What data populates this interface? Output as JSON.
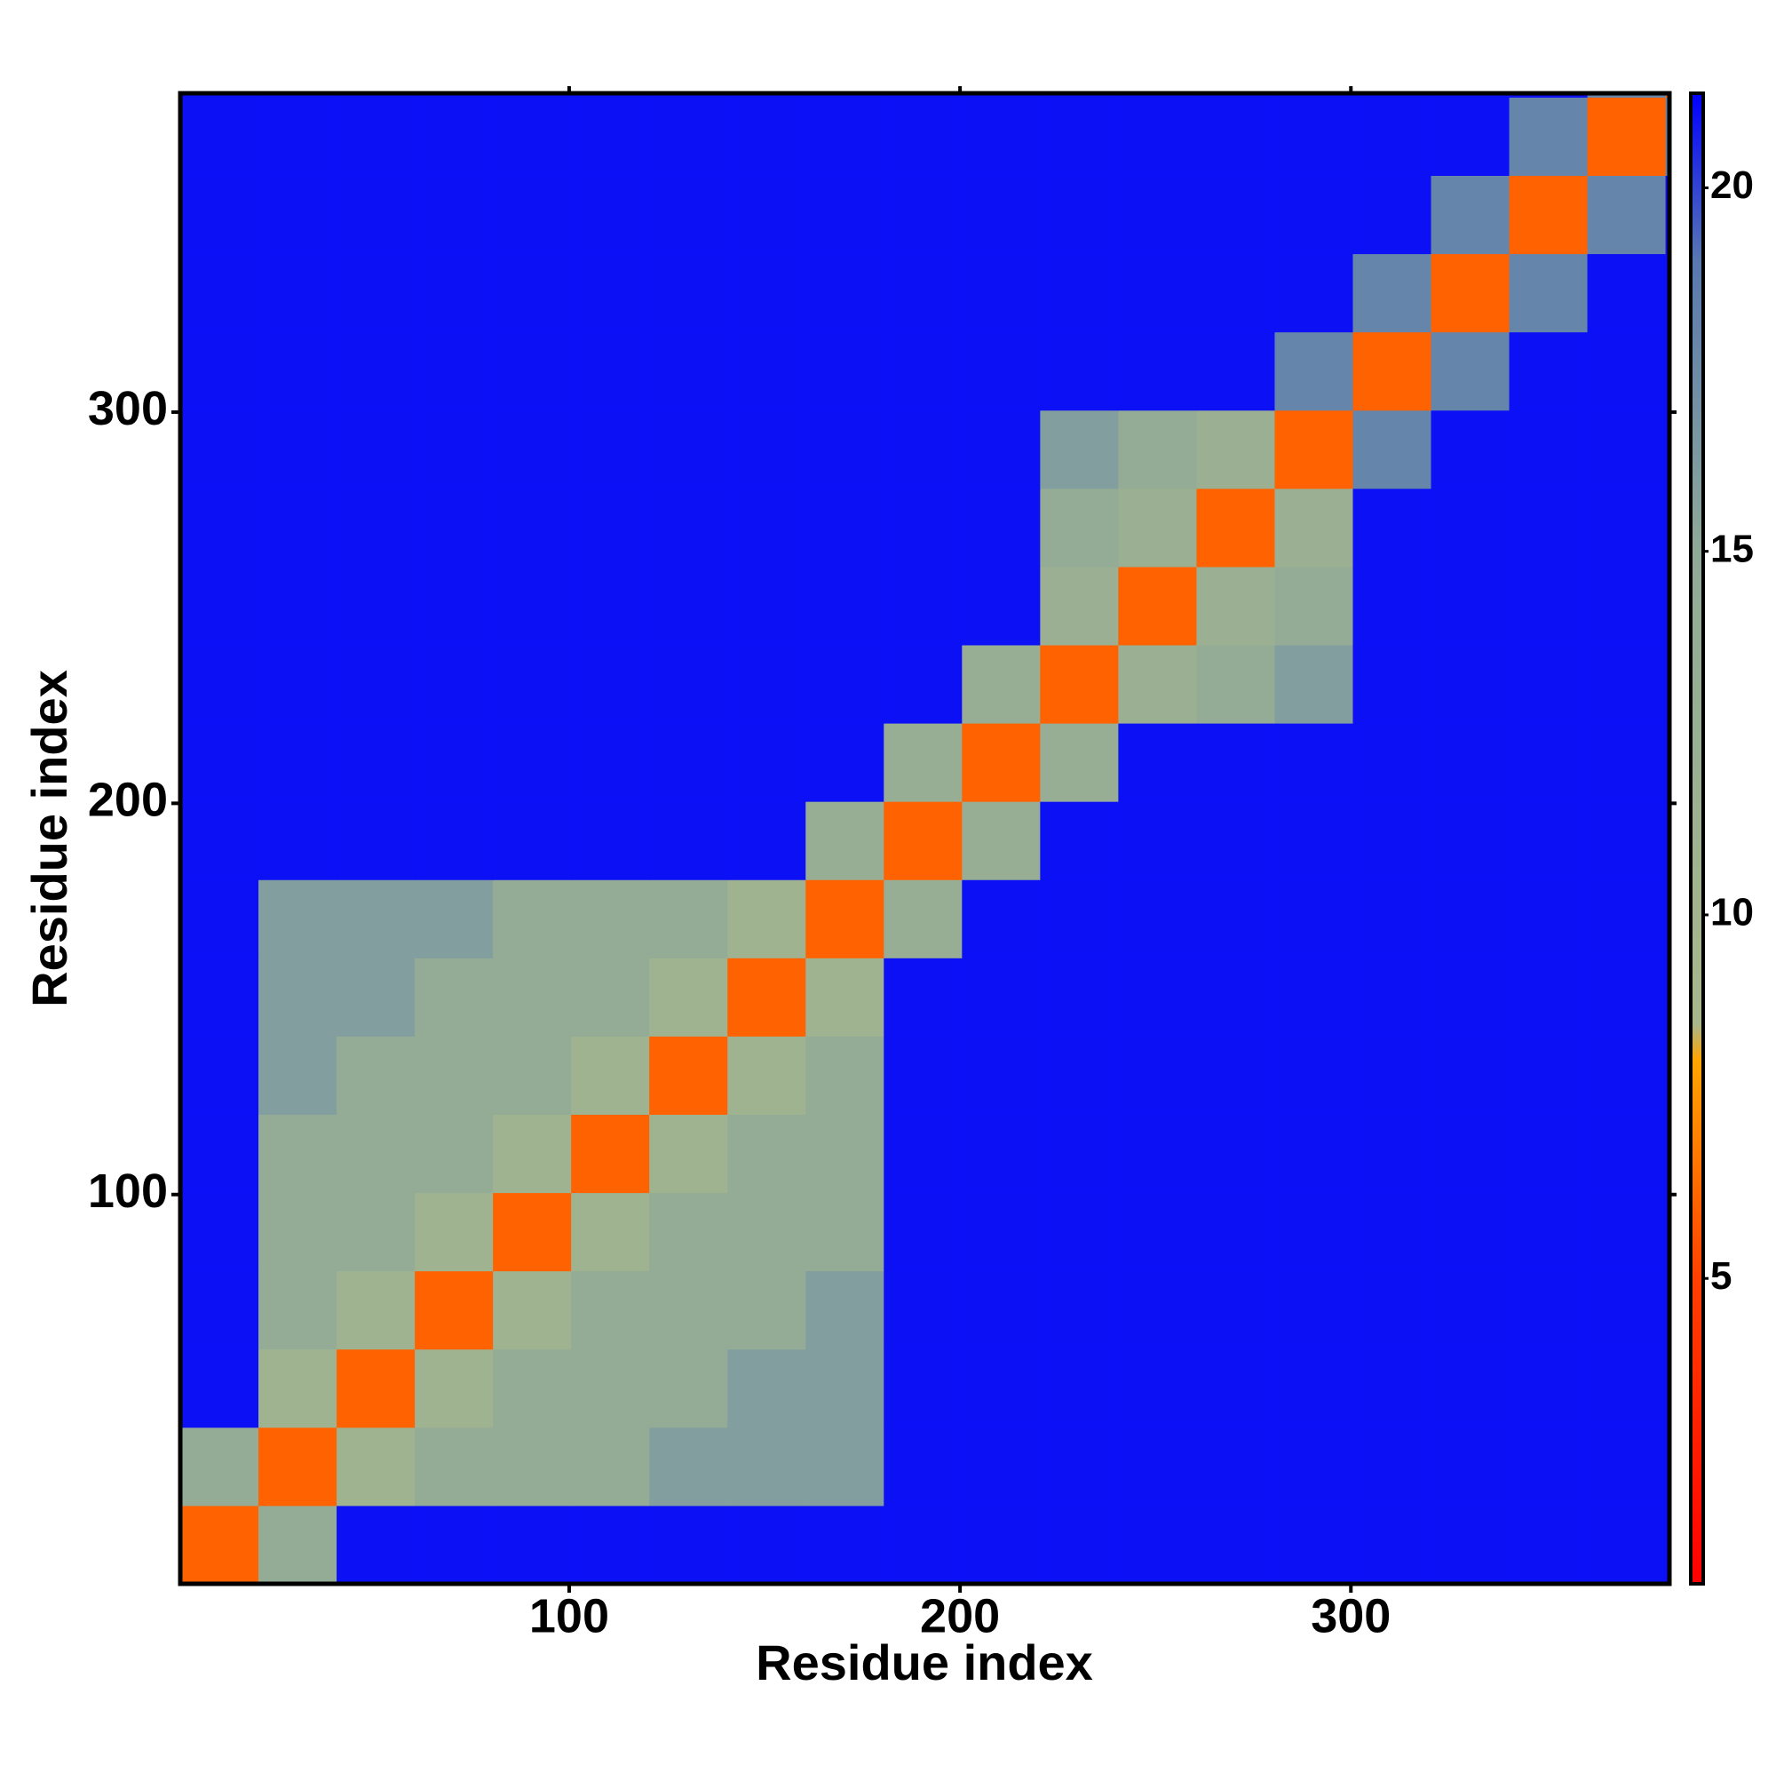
{
  "chart_data": {
    "type": "heatmap",
    "x_label": "Residue index",
    "y_label": "Residue index",
    "xlim": [
      0.5,
      381.5
    ],
    "ylim": [
      0.5,
      381.5
    ],
    "xticks": [
      100,
      200,
      300
    ],
    "yticks": [
      100,
      200,
      300
    ],
    "x_bins": [
      0.5,
      20.5,
      40.5,
      60.5,
      80.5,
      100.5,
      120.5,
      140.5,
      160.5,
      180.5,
      200.5,
      220.5,
      240.5,
      260.5,
      280.5,
      300.5,
      320.5,
      340.5,
      360.5,
      380.5,
      381.5
    ],
    "y_bins": [
      0.5,
      20.5,
      40.5,
      60.5,
      80.5,
      100.5,
      120.5,
      140.5,
      160.5,
      180.5,
      200.5,
      220.5,
      240.5,
      260.5,
      280.5,
      300.5,
      320.5,
      340.5,
      360.5,
      380.5,
      381.5
    ],
    "z": [
      [
        6,
        14,
        21,
        21,
        21,
        21,
        21,
        21,
        21,
        21,
        21,
        21,
        21,
        21,
        21,
        21,
        21,
        21,
        21,
        21
      ],
      [
        14,
        6,
        11,
        14,
        14,
        14,
        16,
        16,
        16,
        21,
        21,
        21,
        21,
        21,
        21,
        21,
        21,
        21,
        21,
        21
      ],
      [
        21,
        11,
        6,
        11,
        14,
        14,
        14,
        16,
        16,
        21,
        21,
        21,
        21,
        21,
        21,
        21,
        21,
        21,
        21,
        21
      ],
      [
        21,
        14,
        11,
        6,
        11,
        14,
        14,
        14,
        16,
        21,
        21,
        21,
        21,
        21,
        21,
        21,
        21,
        21,
        21,
        21
      ],
      [
        21,
        14,
        14,
        11,
        6,
        11,
        14,
        14,
        14,
        21,
        21,
        21,
        21,
        21,
        21,
        21,
        21,
        21,
        21,
        21
      ],
      [
        21,
        14,
        14,
        14,
        11,
        6,
        11,
        14,
        14,
        21,
        21,
        21,
        21,
        21,
        21,
        21,
        21,
        21,
        21,
        21
      ],
      [
        21,
        16,
        14,
        14,
        14,
        11,
        6,
        11,
        14,
        21,
        21,
        21,
        21,
        21,
        21,
        21,
        21,
        21,
        21,
        21
      ],
      [
        21,
        16,
        16,
        14,
        14,
        14,
        11,
        6,
        11,
        21,
        21,
        21,
        21,
        21,
        21,
        21,
        21,
        21,
        21,
        21
      ],
      [
        21,
        16,
        16,
        16,
        14,
        14,
        14,
        11,
        6,
        13,
        21,
        21,
        21,
        21,
        21,
        21,
        21,
        21,
        21,
        21
      ],
      [
        21,
        21,
        21,
        21,
        21,
        21,
        21,
        21,
        13,
        6,
        13,
        21,
        21,
        21,
        21,
        21,
        21,
        21,
        21,
        21
      ],
      [
        21,
        21,
        21,
        21,
        21,
        21,
        21,
        21,
        21,
        13,
        6,
        13,
        21,
        21,
        21,
        21,
        21,
        21,
        21,
        21
      ],
      [
        21,
        21,
        21,
        21,
        21,
        21,
        21,
        21,
        21,
        21,
        13,
        6,
        12,
        14,
        16,
        21,
        21,
        21,
        21,
        21
      ],
      [
        21,
        21,
        21,
        21,
        21,
        21,
        21,
        21,
        21,
        21,
        21,
        12,
        6,
        12,
        14,
        21,
        21,
        21,
        21,
        21
      ],
      [
        21,
        21,
        21,
        21,
        21,
        21,
        21,
        21,
        21,
        21,
        21,
        14,
        12,
        6,
        12,
        21,
        21,
        21,
        21,
        21
      ],
      [
        21,
        21,
        21,
        21,
        21,
        21,
        21,
        21,
        21,
        21,
        21,
        16,
        14,
        12,
        6,
        18,
        21,
        21,
        21,
        21
      ],
      [
        21,
        21,
        21,
        21,
        21,
        21,
        21,
        21,
        21,
        21,
        21,
        21,
        21,
        21,
        18,
        6,
        18,
        21,
        21,
        21
      ],
      [
        21,
        21,
        21,
        21,
        21,
        21,
        21,
        21,
        21,
        21,
        21,
        21,
        21,
        21,
        21,
        18,
        6,
        18,
        21,
        21
      ],
      [
        21,
        21,
        21,
        21,
        21,
        21,
        21,
        21,
        21,
        21,
        21,
        21,
        21,
        21,
        21,
        21,
        18,
        6,
        18,
        21
      ],
      [
        21,
        21,
        21,
        21,
        21,
        21,
        21,
        21,
        21,
        21,
        21,
        21,
        21,
        21,
        21,
        21,
        21,
        18,
        6,
        18
      ],
      [
        21,
        21,
        21,
        21,
        21,
        21,
        21,
        21,
        21,
        21,
        21,
        21,
        21,
        21,
        21,
        21,
        21,
        21,
        18,
        6
      ]
    ],
    "colorbar": {
      "zlim": [
        0.8,
        21.3
      ],
      "ticks": [
        5,
        10,
        15,
        20
      ],
      "colorscale": [
        [
          0.8,
          "#ff0000"
        ],
        [
          5,
          "#ff4000"
        ],
        [
          8,
          "#ffa500"
        ],
        [
          8.5,
          "#a8b88c"
        ],
        [
          15,
          "#90aa98"
        ],
        [
          19,
          "#5878b0"
        ],
        [
          21.3,
          "#0000ff"
        ]
      ]
    }
  }
}
